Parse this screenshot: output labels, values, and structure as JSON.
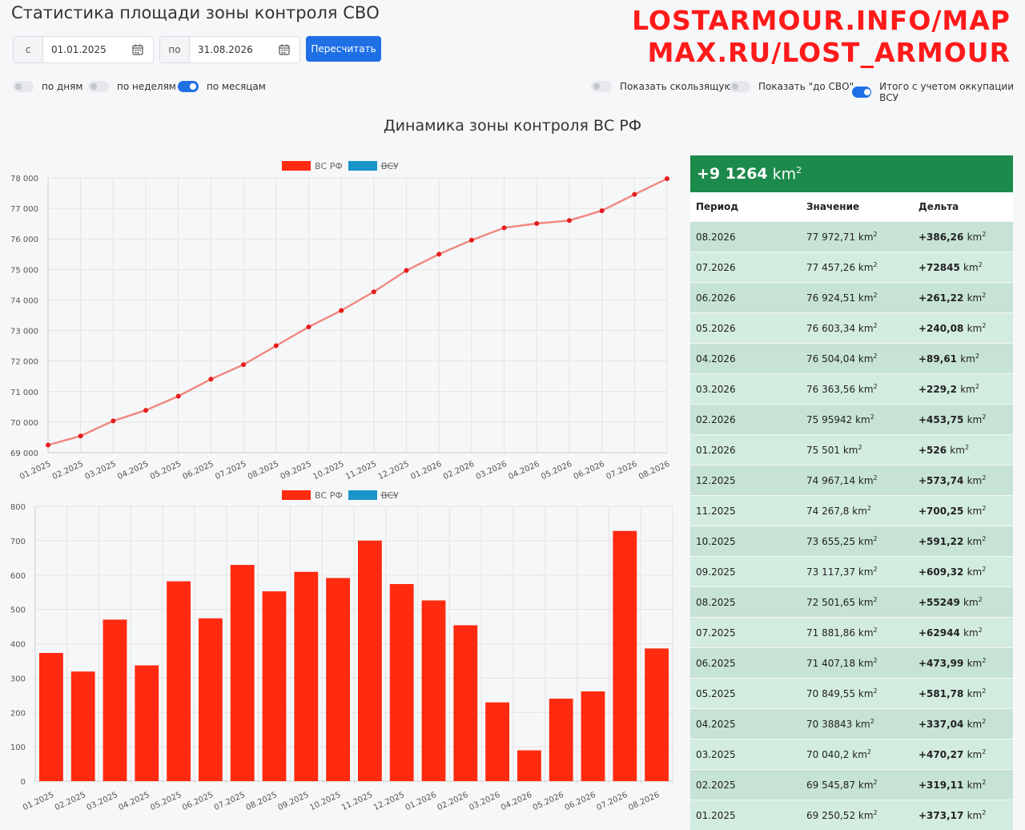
{
  "header": {
    "title": "Статистика площади зоны контроля СВО",
    "watermark_line1": "LOSTARMOUR.INFO/MAP",
    "watermark_line2": "MAX.RU/LOST_ARMOUR"
  },
  "filters": {
    "from_prefix": "с",
    "from_value": "01.01.2025",
    "to_prefix": "по",
    "to_value": "31.08.2026",
    "recalc_label": "Пересчитать"
  },
  "toggles": {
    "by_days": {
      "label": "по дням",
      "on": false
    },
    "by_weeks": {
      "label": "по неделям",
      "on": false
    },
    "by_months": {
      "label": "по месяцам",
      "on": true
    },
    "show_moving": {
      "label": "Показать скользящую",
      "on": false
    },
    "show_before": {
      "label": "Показать \"до СВО\"",
      "on": false
    },
    "with_occupation": {
      "label": "Итого с учетом оккупации ВСУ",
      "on": true
    }
  },
  "page_chart_title": "Динамика зоны контроля ВС РФ",
  "colors": {
    "rf": "#ff2a0f",
    "rf_line": "#f08a80",
    "vsu": "#1a95c9",
    "accent": "#1f6fe5",
    "stats_header": "#1c8a4a"
  },
  "chart_data": [
    {
      "type": "line",
      "legend": [
        {
          "name": "ВС РФ",
          "color": "#ff2a0f",
          "hidden": false
        },
        {
          "name": "ВСУ",
          "color": "#1a95c9",
          "hidden": true
        }
      ],
      "categories": [
        "01.2025",
        "02.2025",
        "03.2025",
        "04.2025",
        "05.2025",
        "06.2025",
        "07.2025",
        "08.2025",
        "09.2025",
        "10.2025",
        "11.2025",
        "12.2025",
        "01.2026",
        "02.2026",
        "03.2026",
        "04.2026",
        "05.2026",
        "06.2026",
        "07.2026",
        "08.2026"
      ],
      "values": [
        69250.52,
        69545.87,
        70040.2,
        70388.43,
        70849.55,
        71407.18,
        71881.86,
        72501.65,
        73117.37,
        73655.25,
        74267.8,
        74967.14,
        75501,
        75959.42,
        76363.56,
        76504.04,
        76603.34,
        76924.51,
        77457.26,
        77972.71
      ],
      "ylim": [
        69000,
        78000
      ],
      "yticks": [
        69000,
        70000,
        71000,
        72000,
        73000,
        74000,
        75000,
        76000,
        77000,
        78000
      ],
      "ytick_labels": [
        "69 000",
        "70 000",
        "71 000",
        "72 000",
        "73 000",
        "74 000",
        "75 000",
        "76 000",
        "77 000",
        "78 000"
      ],
      "grid": true,
      "legend_position": "top"
    },
    {
      "type": "bar",
      "legend": [
        {
          "name": "ВС РФ",
          "color": "#ff2a0f",
          "hidden": false
        },
        {
          "name": "ВСУ",
          "color": "#1a95c9",
          "hidden": true
        }
      ],
      "categories": [
        "01.2025",
        "02.2025",
        "03.2025",
        "04.2025",
        "05.2025",
        "06.2025",
        "07.2025",
        "08.2025",
        "09.2025",
        "10.2025",
        "11.2025",
        "12.2025",
        "01.2026",
        "02.2026",
        "03.2026",
        "04.2026",
        "05.2026",
        "06.2026",
        "07.2026",
        "08.2026"
      ],
      "values": [
        373.17,
        319.11,
        470.27,
        337.04,
        581.78,
        473.99,
        629.44,
        552.49,
        609.32,
        591.22,
        700.25,
        573.74,
        526,
        453.75,
        229.2,
        89.61,
        240.08,
        261.22,
        728.45,
        386.26
      ],
      "ylim": [
        0,
        800
      ],
      "yticks": [
        0,
        100,
        200,
        300,
        400,
        500,
        600,
        700,
        800
      ],
      "ytick_labels": [
        "0",
        "100",
        "200",
        "300",
        "400",
        "500",
        "600",
        "700",
        "800"
      ],
      "grid": true,
      "legend_position": "top"
    }
  ],
  "stats": {
    "total": "+9 1264",
    "unit": "km",
    "unit_power": "2",
    "columns": [
      "Период",
      "Значение",
      "Дельта"
    ],
    "rows": [
      {
        "period": "08.2026",
        "value": "77 972,71",
        "delta": "+386,26"
      },
      {
        "period": "07.2026",
        "value": "77 457,26",
        "delta": "+72845"
      },
      {
        "period": "06.2026",
        "value": "76 924,51",
        "delta": "+261,22"
      },
      {
        "period": "05.2026",
        "value": "76 603,34",
        "delta": "+240,08"
      },
      {
        "period": "04.2026",
        "value": "76 504,04",
        "delta": "+89,61"
      },
      {
        "period": "03.2026",
        "value": "76 363,56",
        "delta": "+229,2"
      },
      {
        "period": "02.2026",
        "value": "75 95942",
        "delta": "+453,75"
      },
      {
        "period": "01.2026",
        "value": "75 501",
        "delta": "+526"
      },
      {
        "period": "12.2025",
        "value": "74 967,14",
        "delta": "+573,74"
      },
      {
        "period": "11.2025",
        "value": "74 267,8",
        "delta": "+700,25"
      },
      {
        "period": "10.2025",
        "value": "73 655,25",
        "delta": "+591,22"
      },
      {
        "period": "09.2025",
        "value": "73 117,37",
        "delta": "+609,32"
      },
      {
        "period": "08.2025",
        "value": "72 501,65",
        "delta": "+55249"
      },
      {
        "period": "07.2025",
        "value": "71 881,86",
        "delta": "+62944"
      },
      {
        "period": "06.2025",
        "value": "71 407,18",
        "delta": "+473,99"
      },
      {
        "period": "05.2025",
        "value": "70 849,55",
        "delta": "+581,78"
      },
      {
        "period": "04.2025",
        "value": "70 38843",
        "delta": "+337,04"
      },
      {
        "period": "03.2025",
        "value": "70 040,2",
        "delta": "+470,27"
      },
      {
        "period": "02.2025",
        "value": "69 545,87",
        "delta": "+319,11"
      },
      {
        "period": "01.2025",
        "value": "69 250,52",
        "delta": "+373,17"
      }
    ]
  }
}
